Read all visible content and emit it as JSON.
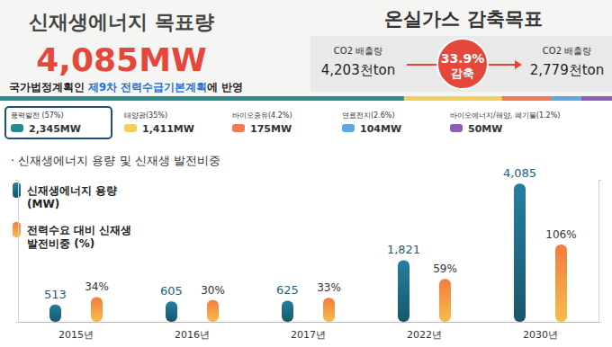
{
  "header": {
    "title": "신재생에너지 목표량",
    "target": "4,085MW",
    "note": {
      "before": "국가법정계획인 ",
      "highlight": "제9차 전력수급기본계획",
      "after": "에 반영"
    }
  },
  "emissions": {
    "title": "온실가스 감축목표",
    "from": {
      "label": "CO2 배출량",
      "value": "4,203천ton"
    },
    "reduction": {
      "value": "33.9%",
      "label": "감축"
    },
    "to": {
      "label": "CO2 배출량",
      "value": "2,779천ton"
    }
  },
  "breakdown": [
    {
      "label": "풍력발전 (57%)",
      "value": "2,345MW",
      "color": "#2a8a8c"
    },
    {
      "label": "태양광(35%)",
      "value": "1,411MW",
      "color": "#f2cf5b"
    },
    {
      "label": "바이오중유(4.2%)",
      "value": "175MW",
      "color": "#f07b55"
    },
    {
      "label": "연료전지(2.6%)",
      "value": "104MW",
      "color": "#5fa8e0"
    },
    {
      "label": "바이오에너지/해양, 폐기물(1.2%)",
      "value": "50MW",
      "color": "#8e5fb5"
    }
  ],
  "chart_data": {
    "type": "bar",
    "title": "· 신재생에너지 용량 및 신재생 발전비중",
    "categories": [
      "2015년",
      "2016년",
      "2017년",
      "2022년",
      "2030년"
    ],
    "series": [
      {
        "name": "신재생에너지 용량 (MW)",
        "color": "#1f6a86",
        "values": [
          513,
          605,
          625,
          1821,
          4085
        ],
        "value_labels": [
          "513",
          "605",
          "625",
          "1,821",
          "4,085"
        ]
      },
      {
        "name": "전력수요 대비 신재생 발전비중 (%)",
        "color": "#f47b3f",
        "axis": "y2",
        "values": [
          34,
          30,
          33,
          59,
          106
        ],
        "value_labels": [
          "34%",
          "30%",
          "33%",
          "59%",
          "106%"
        ]
      }
    ],
    "ylim": [
      0,
      4200
    ],
    "yticks": [
      0,
      4200
    ],
    "y2lim": [
      0,
      195
    ],
    "y2ticks": [
      0,
      195
    ],
    "data_labels": true,
    "tick_labels": "x",
    "legend": "upper left"
  }
}
